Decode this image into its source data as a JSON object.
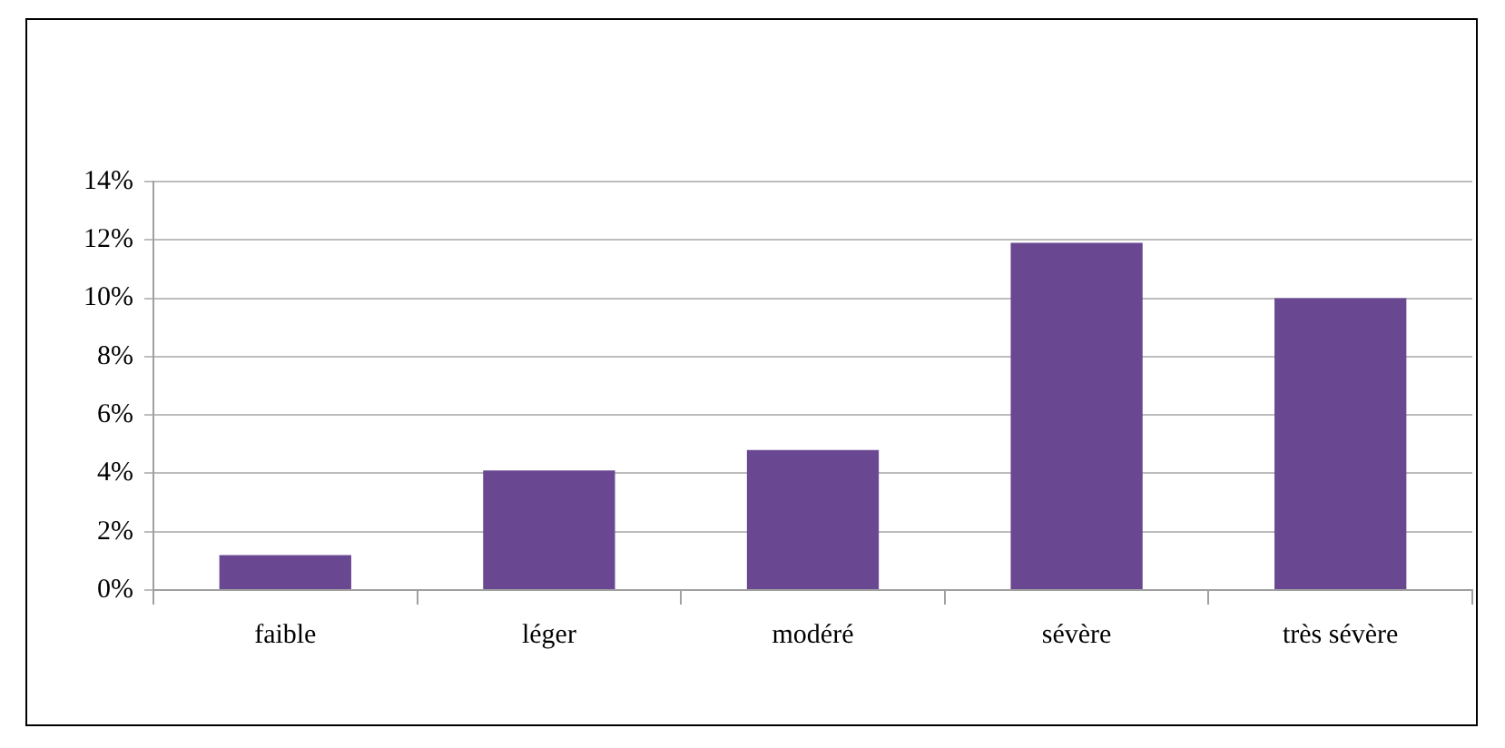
{
  "chart_data": {
    "type": "bar",
    "categories": [
      "faible",
      "léger",
      "modéré",
      "sévère",
      "très sévère"
    ],
    "values": [
      1.2,
      4.1,
      4.8,
      11.9,
      10.0
    ],
    "color": "#6a4791",
    "ylim": [
      0,
      14
    ],
    "yticks": [
      {
        "value": 0,
        "label": "0%"
      },
      {
        "value": 2,
        "label": "2%"
      },
      {
        "value": 4,
        "label": "4%"
      },
      {
        "value": 6,
        "label": "6%"
      },
      {
        "value": 8,
        "label": "8%"
      },
      {
        "value": 10,
        "label": "10%"
      },
      {
        "value": 12,
        "label": "12%"
      },
      {
        "value": 14,
        "label": "14%"
      }
    ],
    "grid": "y",
    "legend": false
  }
}
